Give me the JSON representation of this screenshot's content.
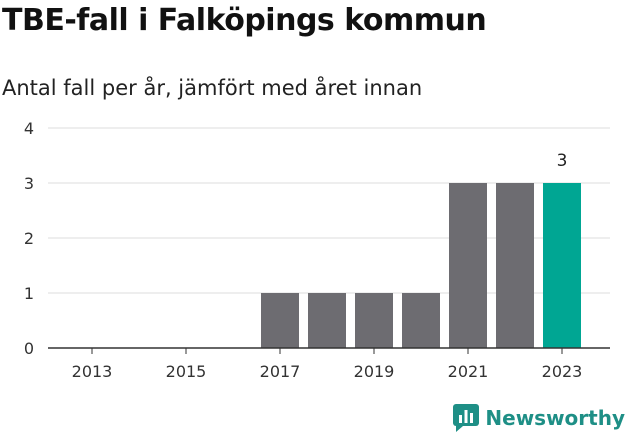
{
  "header": {
    "title": "TBE-fall i Falköpings kommun",
    "subtitle": "Antal fall per år, jämfört med året innan"
  },
  "brand": {
    "name": "Newsworthy",
    "icon": "chart-logo-icon",
    "color": "#1e8f86"
  },
  "chart_data": {
    "type": "bar",
    "categories": [
      "2013",
      "2014",
      "2015",
      "2016",
      "2017",
      "2018",
      "2019",
      "2020",
      "2021",
      "2022",
      "2023"
    ],
    "values": [
      0,
      0,
      0,
      0,
      1,
      1,
      1,
      1,
      3,
      3,
      3
    ],
    "x_tick_labels": [
      "2013",
      "2015",
      "2017",
      "2019",
      "2021",
      "2023"
    ],
    "y_ticks": [
      0,
      1,
      2,
      3,
      4
    ],
    "ylim": [
      0,
      4
    ],
    "grid": true,
    "highlight": {
      "category": "2023",
      "label": "3"
    },
    "colors": {
      "bar": "#6d6c71",
      "highlight": "#00a693",
      "grid": "#dddddd",
      "axis": "#333333"
    }
  }
}
